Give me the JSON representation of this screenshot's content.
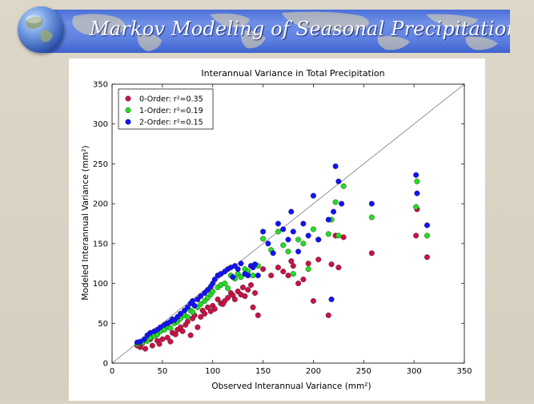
{
  "slide": {
    "title": "Markov Modeling of Seasonal Precipitation"
  },
  "colors": {
    "banner": "#5577dd",
    "order0": "#cc1144",
    "order1": "#22dd22",
    "order2": "#1111ff"
  },
  "icons": {
    "globe": "globe-icon"
  },
  "chart_data": {
    "type": "scatter",
    "title": "Interannual Variance in Total Precipitation",
    "xlabel": "Observed Interannual Variance (mm²)",
    "ylabel": "Modeled Interannual Variance (mm²)",
    "xlim": [
      0,
      350
    ],
    "ylim": [
      0,
      350
    ],
    "xticks": [
      0,
      50,
      100,
      150,
      200,
      250,
      300,
      350
    ],
    "yticks": [
      0,
      50,
      100,
      150,
      200,
      250,
      300,
      350
    ],
    "reference_line": "1:1",
    "grid": false,
    "legend_position": "top-left",
    "series": [
      {
        "name": "0-Order: r²=0.35",
        "color": "#cc1144",
        "x": [
          25,
          28,
          30,
          33,
          35,
          38,
          40,
          43,
          45,
          47,
          50,
          55,
          58,
          60,
          63,
          65,
          68,
          70,
          73,
          75,
          78,
          80,
          82,
          85,
          88,
          90,
          92,
          95,
          98,
          100,
          102,
          105,
          108,
          110,
          112,
          115,
          118,
          120,
          122,
          125,
          128,
          130,
          132,
          135,
          138,
          140,
          142,
          145,
          150,
          158,
          165,
          170,
          175,
          178,
          180,
          185,
          190,
          195,
          200,
          205,
          215,
          218,
          222,
          225,
          230,
          258,
          302,
          303,
          313
        ],
        "y": [
          22,
          20,
          25,
          18,
          28,
          30,
          22,
          35,
          28,
          24,
          30,
          32,
          27,
          38,
          36,
          42,
          45,
          40,
          48,
          52,
          35,
          56,
          60,
          45,
          58,
          66,
          62,
          70,
          65,
          72,
          68,
          80,
          75,
          74,
          78,
          82,
          88,
          85,
          80,
          90,
          86,
          95,
          84,
          92,
          98,
          70,
          88,
          60,
          118,
          110,
          120,
          115,
          110,
          128,
          122,
          100,
          105,
          125,
          78,
          130,
          60,
          124,
          160,
          120,
          158,
          138,
          160,
          193,
          133
        ]
      },
      {
        "name": "1-Order: r²=0.19",
        "color": "#22dd22",
        "x": [
          25,
          30,
          35,
          38,
          42,
          45,
          48,
          52,
          55,
          58,
          62,
          65,
          68,
          72,
          75,
          78,
          80,
          85,
          88,
          92,
          95,
          98,
          100,
          105,
          108,
          112,
          115,
          118,
          122,
          125,
          128,
          132,
          135,
          138,
          140,
          145,
          150,
          158,
          165,
          170,
          175,
          180,
          185,
          190,
          195,
          200,
          205,
          215,
          218,
          222,
          225,
          230,
          258,
          302,
          303,
          313
        ],
        "y": [
          24,
          26,
          28,
          32,
          34,
          36,
          40,
          42,
          46,
          44,
          50,
          52,
          56,
          60,
          58,
          66,
          64,
          70,
          74,
          78,
          82,
          86,
          90,
          95,
          98,
          100,
          94,
          110,
          106,
          112,
          108,
          118,
          115,
          122,
          110,
          122,
          156,
          142,
          165,
          148,
          140,
          112,
          155,
          150,
          118,
          168,
          155,
          162,
          180,
          202,
          160,
          222,
          183,
          196,
          228,
          160
        ]
      },
      {
        "name": "2-Order: r²=0.15",
        "color": "#1111ff",
        "x": [
          25,
          28,
          32,
          35,
          38,
          42,
          45,
          48,
          52,
          55,
          58,
          60,
          62,
          65,
          68,
          72,
          75,
          78,
          80,
          82,
          85,
          88,
          92,
          95,
          98,
          100,
          102,
          105,
          108,
          112,
          115,
          118,
          120,
          122,
          125,
          128,
          132,
          135,
          138,
          140,
          142,
          145,
          150,
          155,
          160,
          165,
          170,
          175,
          178,
          180,
          185,
          190,
          195,
          200,
          205,
          215,
          218,
          220,
          222,
          225,
          228,
          258,
          302,
          303,
          313
        ],
        "y": [
          26,
          27,
          30,
          35,
          38,
          40,
          42,
          45,
          48,
          50,
          52,
          55,
          54,
          58,
          62,
          66,
          70,
          75,
          78,
          72,
          80,
          84,
          88,
          92,
          96,
          100,
          105,
          110,
          112,
          115,
          118,
          120,
          108,
          122,
          118,
          125,
          112,
          110,
          122,
          120,
          124,
          110,
          165,
          150,
          138,
          175,
          168,
          155,
          190,
          165,
          140,
          175,
          160,
          210,
          155,
          180,
          80,
          190,
          247,
          228,
          200,
          200,
          236,
          213,
          173
        ]
      }
    ]
  }
}
